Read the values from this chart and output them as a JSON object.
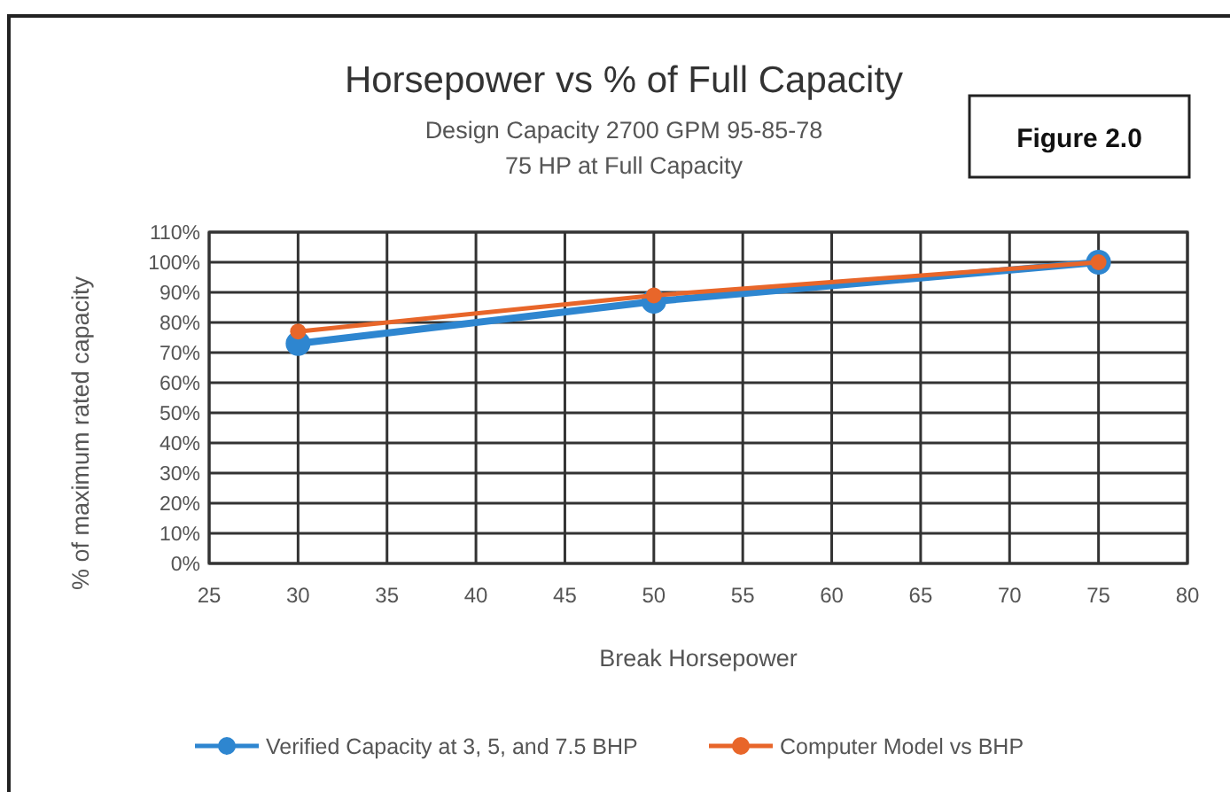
{
  "chart_data": {
    "type": "line",
    "title": "Horsepower vs % of Full Capacity",
    "subtitle": "Design Capacity 2700 GPM 95-85-78\n75 HP at Full Capacity",
    "annotations": [
      "Figure 2.0"
    ],
    "xlabel": "Break Horsepower",
    "ylabel": "% of maximum rated capacity",
    "x": [
      30,
      50,
      75
    ],
    "series": [
      {
        "name": "Verified Capacity at 3, 5, and 7.5 BHP",
        "color": "#2e86d0",
        "values": [
          73,
          87,
          100
        ]
      },
      {
        "name": "Computer Model vs BHP",
        "color": "#e8662a",
        "values": [
          77,
          89,
          100
        ]
      }
    ],
    "xlim": [
      25,
      80
    ],
    "xticks": [
      25,
      30,
      35,
      40,
      45,
      50,
      55,
      60,
      65,
      70,
      75,
      80
    ],
    "ylim": [
      0,
      110
    ],
    "yticks": [
      {
        "value": 0,
        "label": "0%"
      },
      {
        "value": 10,
        "label": "10%"
      },
      {
        "value": 20,
        "label": "20%"
      },
      {
        "value": 30,
        "label": "30%"
      },
      {
        "value": 40,
        "label": "40%"
      },
      {
        "value": 50,
        "label": "50%"
      },
      {
        "value": 60,
        "label": "60%"
      },
      {
        "value": 70,
        "label": "70%"
      },
      {
        "value": 80,
        "label": "80%"
      },
      {
        "value": 90,
        "label": "90%"
      },
      {
        "value": 100,
        "label": "100%"
      },
      {
        "value": 110,
        "label": "110%"
      }
    ],
    "grid": true,
    "legend": "bottom",
    "marker": "circle",
    "line_style": "solid"
  }
}
